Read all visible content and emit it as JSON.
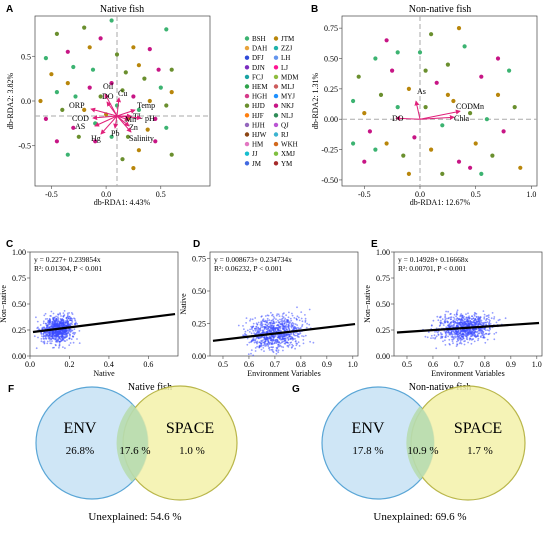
{
  "panels": {
    "A": {
      "label": "A",
      "title": "Native fish",
      "xlabel": "db-RDA1: 4.43%",
      "ylabel": "db-RDA2: 3.82%",
      "xticks": [
        "-0.5",
        "0.0",
        "0.5"
      ],
      "yticks": [
        "0.5",
        "0.0",
        "-0.5"
      ],
      "env": [
        "Oil",
        "DO",
        "Cu",
        "ORP",
        "COD",
        "AS",
        "Hg",
        "Pb",
        "Temp",
        "TL",
        "pH",
        "Mn",
        "Zn",
        "Salinity"
      ]
    },
    "B": {
      "label": "B",
      "title": "Non-native fish",
      "xlabel": "db-RDA1: 12.67%",
      "ylabel": "db-RDA2: 1.31%",
      "xticks": [
        "-0.5",
        "0.0",
        "0.5",
        "1.0"
      ],
      "yticks": [
        "0.75",
        "0.50",
        "0.25",
        "0.00",
        "-0.25",
        "-0.50"
      ],
      "env": [
        "As",
        "CODMn",
        "Chla",
        "DO"
      ]
    },
    "C": {
      "label": "C",
      "xlabel": "Native",
      "ylabel": "Non−native",
      "eq": "y = 0.227+ 0.239854x",
      "r2": "R²: 0.01304, P < 0.001",
      "xticks": [
        "0.0",
        "0.2",
        "0.4",
        "0.6"
      ],
      "yticks": [
        "1.00",
        "0.75",
        "0.50",
        "0.25",
        "0.00"
      ]
    },
    "D": {
      "label": "D",
      "xlabel": "Environment Variables",
      "ylabel": "Native",
      "eq": "y = 0.008673+ 0.234734x",
      "r2": "R²: 0.06232, P < 0.001",
      "xticks": [
        "0.5",
        "0.6",
        "0.7",
        "0.8",
        "0.9",
        "1.0"
      ],
      "yticks": [
        "0.75",
        "0.50",
        "0.25",
        "0.00"
      ]
    },
    "E": {
      "label": "E",
      "xlabel": "Environment Variables",
      "ylabel": "Non−native",
      "eq": "y = 0.14928+ 0.16668x",
      "r2": "R²: 0.00701, P < 0.001",
      "xticks": [
        "0.5",
        "0.6",
        "0.7",
        "0.8",
        "0.9",
        "1.0"
      ],
      "yticks": [
        "1.00",
        "0.75",
        "0.50",
        "0.25",
        "0.00"
      ]
    },
    "F": {
      "label": "F",
      "title": "Native fish",
      "env_label": "ENV",
      "space_label": "SPACE",
      "env_only": "26.8%",
      "shared": "17.6 %",
      "space_only": "1.0 %",
      "unexplained": "Unexplained: 54.6 %"
    },
    "G": {
      "label": "G",
      "title": "Non-native fish",
      "env_label": "ENV",
      "space_label": "SPACE",
      "env_only": "17.8 %",
      "shared": "10.9 %",
      "space_only": "1.7 %",
      "unexplained": "Unexplained: 69.6 %"
    }
  },
  "legend": {
    "col1": [
      "BSH",
      "DAH",
      "DFJ",
      "DJN",
      "FCJ",
      "HEM",
      "HGH",
      "HJD",
      "HJF",
      "HJH",
      "HJW",
      "HM",
      "JJ",
      "JM"
    ],
    "col2": [
      "JTM",
      "ZZJ",
      "LH",
      "LJ",
      "MDM",
      "MLJ",
      "MYJ",
      "NKJ",
      "NLJ",
      "QJ",
      "RJ",
      "WKH",
      "XMJ",
      "YM"
    ],
    "colors1": [
      "#3cb371",
      "#e8a33d",
      "#2f4bd8",
      "#7b2cbf",
      "#1aa3a3",
      "#2ea34a",
      "#d63b8a",
      "#6a8f2e",
      "#ff7f0e",
      "#9467bd",
      "#8b4513",
      "#e377c2",
      "#17becf",
      "#4169e1"
    ],
    "colors2": [
      "#b8860b",
      "#20b2aa",
      "#6495ed",
      "#ff1493",
      "#8fbc3f",
      "#cd5c5c",
      "#1e90ff",
      "#c71585",
      "#2e8b57",
      "#ba55d3",
      "#3cb3d0",
      "#d2691e",
      "#7fbf3f",
      "#a52a2a"
    ]
  },
  "chart_data": [
    {
      "type": "scatter",
      "panel": "A",
      "xlabel": "db-RDA1: 4.43%",
      "ylabel": "db-RDA2: 3.82%",
      "xlim": [
        -0.65,
        0.95
      ],
      "ylim": [
        -0.95,
        0.95
      ],
      "points": [
        [
          -0.55,
          0.48
        ],
        [
          -0.45,
          0.75
        ],
        [
          -0.5,
          0.3
        ],
        [
          -0.35,
          0.55
        ],
        [
          -0.3,
          0.38
        ],
        [
          -0.2,
          0.82
        ],
        [
          -0.15,
          0.6
        ],
        [
          -0.05,
          0.7
        ],
        [
          0.05,
          0.9
        ],
        [
          0.1,
          0.52
        ],
        [
          0.25,
          0.6
        ],
        [
          0.4,
          0.58
        ],
        [
          0.55,
          0.8
        ],
        [
          0.6,
          0.35
        ],
        [
          -0.6,
          0.0
        ],
        [
          -0.55,
          -0.2
        ],
        [
          -0.45,
          0.1
        ],
        [
          -0.4,
          -0.1
        ],
        [
          -0.35,
          0.2
        ],
        [
          -0.3,
          -0.3
        ],
        [
          -0.28,
          0.05
        ],
        [
          -0.25,
          -0.4
        ],
        [
          -0.2,
          -0.1
        ],
        [
          -0.15,
          0.15
        ],
        [
          -0.1,
          -0.25
        ],
        [
          -0.05,
          0.05
        ],
        [
          0.0,
          -0.15
        ],
        [
          0.05,
          0.2
        ],
        [
          0.1,
          -0.05
        ],
        [
          0.15,
          0.12
        ],
        [
          0.2,
          -0.2
        ],
        [
          0.25,
          0.05
        ],
        [
          0.3,
          -0.1
        ],
        [
          0.35,
          0.25
        ],
        [
          0.4,
          0.0
        ],
        [
          0.45,
          -0.2
        ],
        [
          0.5,
          0.15
        ],
        [
          0.55,
          -0.05
        ],
        [
          0.6,
          0.1
        ],
        [
          -0.1,
          -0.45
        ],
        [
          0.05,
          -0.4
        ],
        [
          0.2,
          -0.4
        ],
        [
          0.3,
          -0.55
        ],
        [
          0.45,
          -0.45
        ],
        [
          0.55,
          -0.3
        ],
        [
          0.15,
          -0.65
        ],
        [
          0.25,
          -0.75
        ],
        [
          -0.45,
          -0.45
        ],
        [
          -0.35,
          -0.6
        ],
        [
          0.6,
          -0.6
        ],
        [
          0.3,
          0.4
        ],
        [
          0.48,
          0.35
        ],
        [
          -0.12,
          0.35
        ],
        [
          0.18,
          0.32
        ],
        [
          0.38,
          -0.32
        ]
      ]
    },
    {
      "type": "scatter",
      "panel": "B",
      "xlabel": "db-RDA1: 12.67%",
      "ylabel": "db-RDA2: 1.31%",
      "xlim": [
        -0.7,
        1.05
      ],
      "ylim": [
        -0.55,
        0.85
      ],
      "points": [
        [
          -0.6,
          0.15
        ],
        [
          -0.55,
          0.35
        ],
        [
          -0.5,
          0.05
        ],
        [
          -0.45,
          -0.1
        ],
        [
          -0.4,
          0.5
        ],
        [
          -0.35,
          0.2
        ],
        [
          -0.3,
          -0.2
        ],
        [
          -0.25,
          0.4
        ],
        [
          -0.2,
          0.1
        ],
        [
          -0.15,
          -0.3
        ],
        [
          -0.1,
          0.25
        ],
        [
          -0.05,
          -0.15
        ],
        [
          0.0,
          0.55
        ],
        [
          0.05,
          0.1
        ],
        [
          0.1,
          -0.25
        ],
        [
          0.15,
          0.3
        ],
        [
          0.2,
          -0.05
        ],
        [
          0.25,
          0.45
        ],
        [
          0.3,
          0.15
        ],
        [
          0.35,
          -0.35
        ],
        [
          0.4,
          0.6
        ],
        [
          0.45,
          0.05
        ],
        [
          0.5,
          -0.2
        ],
        [
          0.55,
          0.35
        ],
        [
          0.6,
          0.0
        ],
        [
          0.65,
          -0.3
        ],
        [
          0.7,
          0.2
        ],
        [
          0.75,
          -0.1
        ],
        [
          0.8,
          0.4
        ],
        [
          0.85,
          0.1
        ],
        [
          0.9,
          -0.4
        ],
        [
          -0.5,
          -0.35
        ],
        [
          -0.4,
          -0.25
        ],
        [
          0.1,
          0.7
        ],
        [
          0.35,
          0.75
        ],
        [
          -0.3,
          0.65
        ],
        [
          0.55,
          -0.45
        ],
        [
          0.2,
          -0.45
        ],
        [
          -0.1,
          -0.45
        ],
        [
          0.7,
          0.5
        ],
        [
          -0.6,
          -0.2
        ],
        [
          0.05,
          0.4
        ],
        [
          0.25,
          0.2
        ],
        [
          0.45,
          -0.4
        ],
        [
          -0.2,
          0.55
        ]
      ]
    },
    {
      "type": "scatter",
      "panel": "C",
      "xlabel": "Native",
      "ylabel": "Non−native",
      "xlim": [
        0,
        0.75
      ],
      "ylim": [
        0,
        1
      ],
      "trend": {
        "intercept": 0.227,
        "slope": 0.239854
      }
    },
    {
      "type": "scatter",
      "panel": "D",
      "xlabel": "Environment Variables",
      "ylabel": "Native",
      "xlim": [
        0.45,
        1.02
      ],
      "ylim": [
        0,
        0.8
      ],
      "trend": {
        "intercept": 0.008673,
        "slope": 0.234734
      }
    },
    {
      "type": "scatter",
      "panel": "E",
      "xlabel": "Environment Variables",
      "ylabel": "Non−native",
      "xlim": [
        0.45,
        1.02
      ],
      "ylim": [
        0,
        1
      ],
      "trend": {
        "intercept": 0.14928,
        "slope": 0.16668
      }
    },
    {
      "type": "venn",
      "panel": "F",
      "sets": [
        "ENV",
        "SPACE"
      ],
      "values": {
        "ENV_only": 26.8,
        "shared": 17.6,
        "SPACE_only": 1.0,
        "unexplained": 54.6
      }
    },
    {
      "type": "venn",
      "panel": "G",
      "sets": [
        "ENV",
        "SPACE"
      ],
      "values": {
        "ENV_only": 17.8,
        "shared": 10.9,
        "SPACE_only": 1.7,
        "unexplained": 69.6
      }
    }
  ]
}
